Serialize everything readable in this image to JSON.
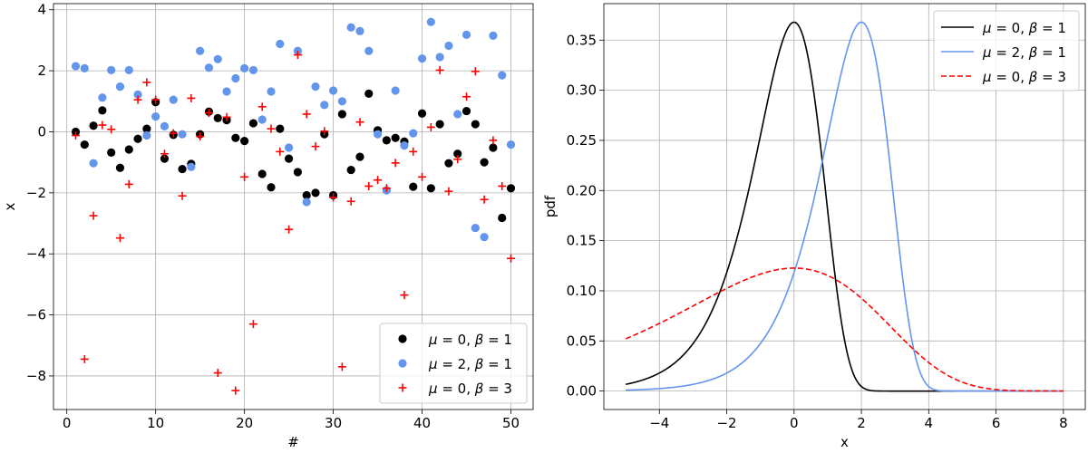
{
  "chart_data": [
    {
      "type": "scatter",
      "xlabel": "#",
      "ylabel": "x",
      "xlim": [
        -1.5,
        52.5
      ],
      "ylim": [
        -9.1,
        4.2
      ],
      "xticks": [
        0,
        10,
        20,
        30,
        40,
        50
      ],
      "yticks": [
        -8,
        -6,
        -4,
        -2,
        0,
        2,
        4
      ],
      "grid": true,
      "legend_position": "lower-right",
      "series": [
        {
          "name": "$\\mu = 0,\\ \\beta = 1$",
          "marker": "circle",
          "color": "#000000",
          "x": [
            1,
            2,
            3,
            4,
            5,
            6,
            7,
            8,
            9,
            10,
            11,
            12,
            13,
            14,
            15,
            16,
            17,
            18,
            19,
            20,
            21,
            22,
            23,
            24,
            25,
            26,
            27,
            28,
            29,
            30,
            31,
            32,
            33,
            34,
            35,
            36,
            37,
            38,
            39,
            40,
            41,
            42,
            43,
            44,
            45,
            46,
            47,
            48,
            49,
            50
          ],
          "y": [
            0.0,
            -0.42,
            0.2,
            0.7,
            -0.68,
            -1.18,
            -0.58,
            -0.23,
            0.1,
            0.97,
            -0.88,
            -0.1,
            -1.22,
            -1.05,
            -0.08,
            0.66,
            0.45,
            0.38,
            -0.2,
            -0.3,
            0.28,
            -1.38,
            -1.82,
            0.1,
            -0.88,
            -1.32,
            -2.08,
            -2.0,
            -0.08,
            -2.08,
            0.58,
            -1.25,
            -0.82,
            1.25,
            0.05,
            -0.28,
            -0.2,
            -0.32,
            -1.8,
            0.6,
            -1.85,
            0.25,
            -1.03,
            -0.72,
            0.68,
            0.25,
            -1.0,
            -0.52,
            -2.82,
            -1.85
          ]
        },
        {
          "name": "$\\mu = 2,\\ \\beta = 1$",
          "marker": "circle",
          "color": "#6495ed",
          "x": [
            1,
            2,
            3,
            4,
            5,
            6,
            7,
            8,
            9,
            10,
            11,
            12,
            13,
            14,
            15,
            16,
            17,
            18,
            19,
            20,
            21,
            22,
            23,
            24,
            25,
            26,
            27,
            28,
            29,
            30,
            31,
            32,
            33,
            34,
            35,
            36,
            37,
            38,
            39,
            40,
            41,
            42,
            43,
            44,
            45,
            46,
            47,
            48,
            49,
            50
          ],
          "y": [
            2.15,
            2.08,
            -1.03,
            1.12,
            2.02,
            1.48,
            2.02,
            1.22,
            -0.12,
            0.5,
            0.18,
            1.05,
            -0.08,
            -1.15,
            2.65,
            2.1,
            2.38,
            1.32,
            1.75,
            2.08,
            2.02,
            0.4,
            1.32,
            2.88,
            -0.52,
            2.65,
            -2.3,
            1.48,
            0.88,
            1.35,
            1.0,
            3.42,
            3.3,
            2.65,
            -0.08,
            -1.92,
            1.35,
            -0.45,
            -0.05,
            2.4,
            3.6,
            2.45,
            2.82,
            0.58,
            3.18,
            -3.15,
            -3.45,
            3.15,
            1.85,
            -0.42
          ]
        },
        {
          "name": "$\\mu = 0,\\ \\beta = 3$",
          "marker": "plus",
          "color": "#ff0000",
          "x": [
            1,
            2,
            3,
            4,
            5,
            6,
            7,
            8,
            9,
            10,
            11,
            12,
            13,
            14,
            15,
            16,
            17,
            18,
            19,
            20,
            21,
            22,
            23,
            24,
            25,
            26,
            27,
            28,
            29,
            30,
            31,
            32,
            33,
            34,
            35,
            36,
            37,
            38,
            39,
            40,
            41,
            42,
            43,
            44,
            45,
            46,
            47,
            48,
            49,
            50
          ],
          "y": [
            -0.12,
            -7.45,
            -2.75,
            0.22,
            0.08,
            -3.48,
            -1.72,
            1.05,
            1.62,
            1.05,
            -0.72,
            -0.05,
            -2.1,
            1.1,
            -0.15,
            0.62,
            -7.9,
            0.48,
            -8.48,
            -1.48,
            -6.3,
            0.82,
            0.1,
            -0.65,
            -3.2,
            2.52,
            0.58,
            -0.48,
            0.02,
            -2.15,
            -7.7,
            -2.28,
            0.32,
            -1.78,
            -1.58,
            -1.85,
            -1.02,
            -5.35,
            -0.65,
            -1.48,
            0.15,
            2.02,
            -1.95,
            -0.9,
            1.15,
            1.98,
            -2.22,
            -0.28,
            -1.78,
            -4.15
          ]
        }
      ]
    },
    {
      "type": "line",
      "xlabel": "x",
      "ylabel": "pdf",
      "xlim": [
        -5.65,
        8.65
      ],
      "ylim": [
        -0.0184,
        0.3864
      ],
      "xticks": [
        -4,
        -2,
        0,
        2,
        4,
        6,
        8
      ],
      "yticks": [
        0.0,
        0.05,
        0.1,
        0.15,
        0.2,
        0.25,
        0.3,
        0.35
      ],
      "grid": true,
      "legend_position": "upper-right",
      "x_range": [
        -5,
        8
      ],
      "series": [
        {
          "name": "$\\mu = 0,\\ \\beta = 1$",
          "mu": 0,
          "beta": 1,
          "color": "#000000",
          "linestyle": "solid"
        },
        {
          "name": "$\\mu = 2,\\ \\beta = 1$",
          "mu": 2,
          "beta": 1,
          "color": "#6495ed",
          "linestyle": "solid"
        },
        {
          "name": "$\\mu = 0,\\ \\beta = 3$",
          "mu": 0,
          "beta": 3,
          "color": "#ff0000",
          "linestyle": "dashed"
        }
      ]
    }
  ]
}
